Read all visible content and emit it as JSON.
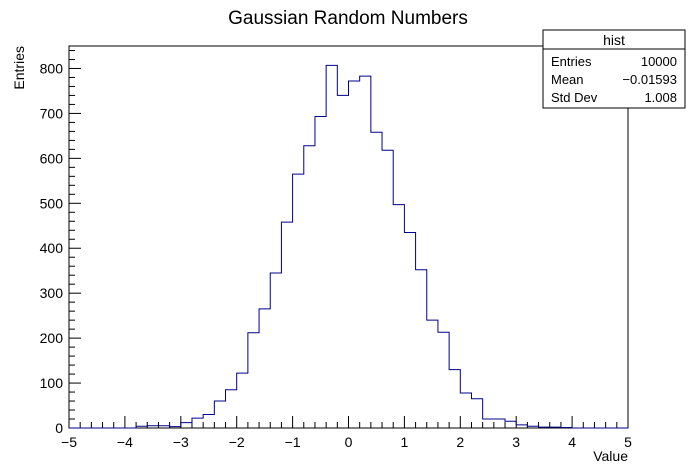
{
  "chart_data": {
    "type": "bar",
    "title": "Gaussian Random Numbers",
    "xlabel": "Value",
    "ylabel": "Entries",
    "xlim": [
      -5,
      5
    ],
    "ylim": [
      0,
      850
    ],
    "bin_width": 0.2,
    "bin_edges_start": -5,
    "x_ticks": [
      -5,
      -4,
      -3,
      -2,
      -1,
      0,
      1,
      2,
      3,
      4,
      5
    ],
    "y_ticks": [
      0,
      100,
      200,
      300,
      400,
      500,
      600,
      700,
      800
    ],
    "values": [
      0,
      0,
      0,
      0,
      0,
      0,
      4,
      5,
      5,
      3,
      12,
      22,
      30,
      60,
      85,
      122,
      212,
      265,
      345,
      458,
      565,
      628,
      693,
      807,
      740,
      772,
      783,
      658,
      618,
      497,
      435,
      352,
      240,
      213,
      130,
      78,
      65,
      20,
      20,
      15,
      7,
      4,
      2,
      2,
      1,
      0,
      0,
      0,
      0,
      0
    ],
    "grid": false,
    "legend": "none",
    "line_color": "#00008b"
  },
  "stats": {
    "header": "hist",
    "rows": [
      {
        "label": "Entries",
        "value": "10000"
      },
      {
        "label": "Mean",
        "value": "−0.01593"
      },
      {
        "label": "Std Dev",
        "value": "1.008"
      }
    ]
  }
}
